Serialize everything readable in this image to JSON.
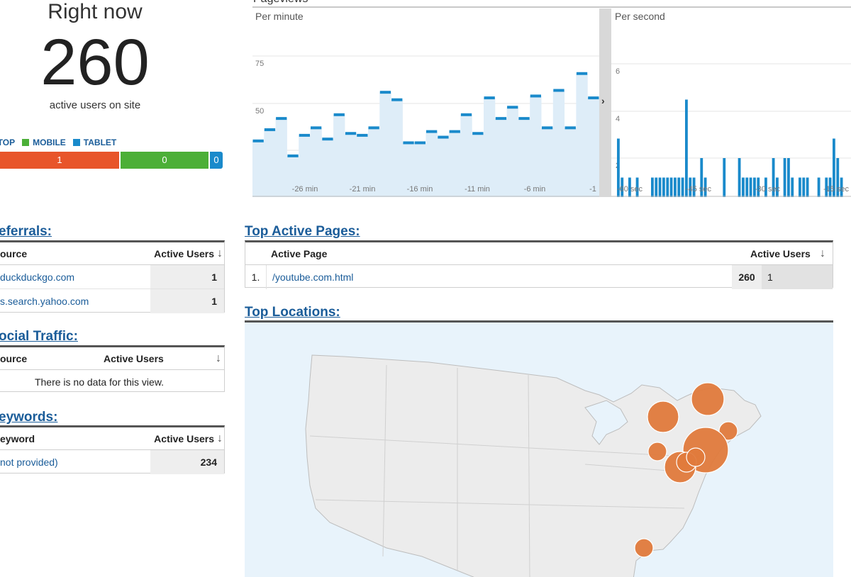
{
  "right_now": {
    "title": "Right now",
    "count": "260",
    "subtitle": "active users on site"
  },
  "devices": {
    "legend": [
      {
        "label": "DESKTOP",
        "color": "#e8552a"
      },
      {
        "label": "MOBILE",
        "color": "#4caf37"
      },
      {
        "label": "TABLET",
        "color": "#1a8acb"
      }
    ],
    "visible_desktop_label": "KTOP",
    "desktop_value": "1",
    "mobile_value": "0",
    "tablet_value": "0"
  },
  "pageviews": {
    "title": "Pageviews",
    "per_minute": {
      "label": "Per minute",
      "y_ticks": [
        "75",
        "50",
        "25"
      ],
      "x_ticks": [
        "-26 min",
        "-21 min",
        "-16 min",
        "-11 min",
        "-6 min",
        "-1"
      ],
      "values": [
        30,
        36,
        42,
        22,
        33,
        37,
        31,
        44,
        34,
        33,
        37,
        56,
        52,
        29,
        29,
        35,
        32,
        35,
        44,
        34,
        53,
        42,
        48,
        42,
        54,
        37,
        57,
        37,
        66,
        53
      ]
    },
    "per_second": {
      "label": "Per second",
      "y_ticks": [
        "6",
        "4",
        "2"
      ],
      "x_ticks": [
        "-60 sec",
        "-45 sec",
        "-30 sec",
        "-15 sec"
      ],
      "values": [
        3,
        1,
        0,
        1,
        0,
        1,
        0,
        0,
        0,
        1,
        1,
        1,
        1,
        1,
        1,
        1,
        1,
        1,
        5,
        1,
        1,
        0,
        2,
        1,
        0,
        0,
        0,
        0,
        2,
        0,
        0,
        0,
        2,
        1,
        1,
        1,
        1,
        1,
        0,
        1,
        0,
        2,
        1,
        0,
        2,
        2,
        1,
        0,
        1,
        1,
        1,
        0,
        0,
        1,
        0,
        1,
        1,
        3,
        2,
        1
      ]
    }
  },
  "referrals": {
    "title": "Referrals:",
    "visible_title": "eferrals:",
    "col_source": "ource",
    "col_users": "Active Users",
    "sort_icon": "↓",
    "rows": [
      {
        "source": "duckduckgo.com",
        "users": "1"
      },
      {
        "source": "s.search.yahoo.com",
        "users": "1"
      }
    ]
  },
  "social": {
    "visible_title": "ocial Traffic:",
    "col_source": "ource",
    "col_users": "Active Users",
    "sort_icon": "↓",
    "empty_text": "There is no data for this view."
  },
  "keywords": {
    "visible_title": "eywords:",
    "col_keyword": "eyword",
    "col_users": "Active Users",
    "sort_icon": "↓",
    "rows": [
      {
        "keyword": "not provided)",
        "users": "234"
      }
    ]
  },
  "top_pages": {
    "title": "Top Active Pages:",
    "col_page": "Active Page",
    "col_users": "Active Users",
    "sort_icon": "↓",
    "rows": [
      {
        "rank": "1.",
        "page": "/youtube.com.html",
        "users": "260",
        "extra": "1"
      }
    ]
  },
  "top_locations": {
    "title": "Top Locations:",
    "markers": [
      {
        "name": "Toronto area",
        "size": "large"
      },
      {
        "name": "Montreal area",
        "size": "large"
      },
      {
        "name": "Boston area",
        "size": "small"
      },
      {
        "name": "New York area",
        "size": "xlarge"
      },
      {
        "name": "Pittsburgh area",
        "size": "small"
      },
      {
        "name": "Philadelphia area",
        "size": "large"
      },
      {
        "name": "Florida",
        "size": "small"
      }
    ],
    "colors": {
      "marker": "#e07a3c",
      "land": "#ececec",
      "water": "#e8f3fb"
    }
  }
}
